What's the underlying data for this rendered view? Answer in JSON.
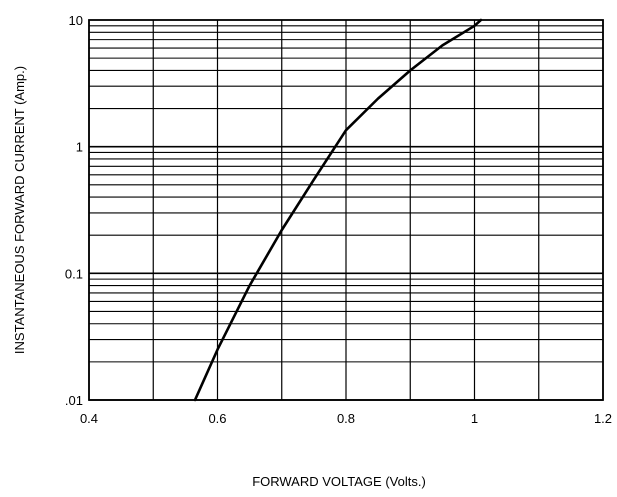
{
  "chart_data": {
    "type": "line",
    "title": "",
    "xlabel": "FORWARD VOLTAGE (Volts.)",
    "ylabel": "INSTANTANEOUS FORWARD CURRENT (Amp.)",
    "x_scale": "linear",
    "y_scale": "log",
    "xlim": [
      0.4,
      1.2
    ],
    "ylim": [
      0.01,
      10
    ],
    "grid": true,
    "x_ticks": [
      0.4,
      0.6,
      0.8,
      1,
      1.2
    ],
    "x_tick_labels": [
      "0.4",
      "0.6",
      "0.8",
      "1",
      "1.2"
    ],
    "x_minor_grid": [
      0.5,
      0.7,
      0.9,
      1.1
    ],
    "y_ticks": [
      0.01,
      0.1,
      1,
      10
    ],
    "y_tick_labels": [
      ".01",
      "0.1",
      "1",
      "10"
    ],
    "colors": {
      "line": "#000000",
      "grid": "#000000",
      "background": "#ffffff"
    },
    "series": [
      {
        "x": [
          0.565,
          0.6,
          0.65,
          0.7,
          0.75,
          0.8,
          0.85,
          0.9,
          0.95,
          1.0,
          1.01
        ],
        "y": [
          0.01,
          0.025,
          0.08,
          0.22,
          0.55,
          1.35,
          2.4,
          4.0,
          6.3,
          9.0,
          10
        ]
      }
    ]
  }
}
